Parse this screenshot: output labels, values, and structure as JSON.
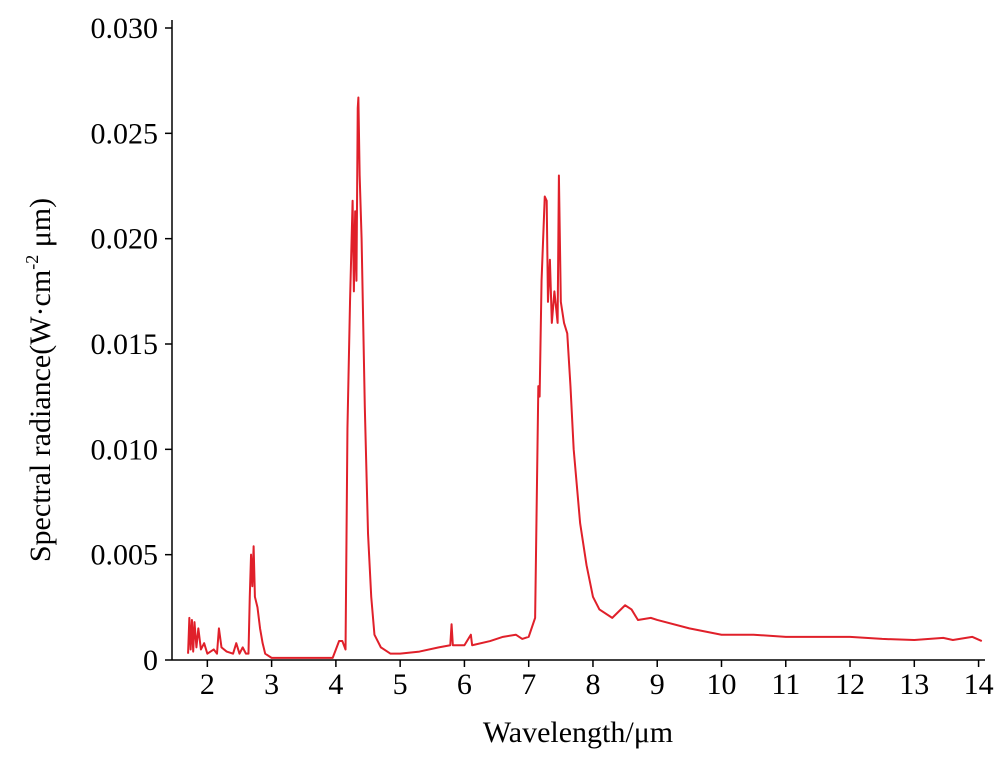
{
  "chart_data": {
    "type": "line",
    "xlabel": "Wavelength/μm",
    "ylabel": [
      "Spectral radiance(W·cm",
      "-2",
      " μm)"
    ],
    "x": [
      1.7,
      1.72,
      1.74,
      1.76,
      1.78,
      1.8,
      1.83,
      1.86,
      1.9,
      1.95,
      2.0,
      2.05,
      2.1,
      2.15,
      2.18,
      2.22,
      2.3,
      2.4,
      2.45,
      2.5,
      2.55,
      2.6,
      2.64,
      2.66,
      2.68,
      2.7,
      2.72,
      2.74,
      2.78,
      2.82,
      2.86,
      2.9,
      3.0,
      3.5,
      3.95,
      4.0,
      4.05,
      4.1,
      4.15,
      4.18,
      4.22,
      4.26,
      4.28,
      4.3,
      4.32,
      4.34,
      4.35,
      4.37,
      4.4,
      4.45,
      4.5,
      4.55,
      4.6,
      4.7,
      4.85,
      5.0,
      5.3,
      5.6,
      5.78,
      5.8,
      5.82,
      6.0,
      6.1,
      6.12,
      6.4,
      6.6,
      6.8,
      6.9,
      7.0,
      7.1,
      7.15,
      7.17,
      7.2,
      7.25,
      7.28,
      7.3,
      7.33,
      7.36,
      7.4,
      7.45,
      7.47,
      7.5,
      7.55,
      7.6,
      7.65,
      7.7,
      7.8,
      7.9,
      8.0,
      8.1,
      8.3,
      8.5,
      8.6,
      8.7,
      8.9,
      9.0,
      9.5,
      10.0,
      10.5,
      11,
      12,
      12.5,
      13,
      13.45,
      13.6,
      13.9,
      14.05
    ],
    "series": [
      {
        "name": "radiance",
        "color": "#e0202a",
        "values": [
          0.0003,
          0.002,
          0.0005,
          0.0019,
          0.0004,
          0.0018,
          0.0006,
          0.0015,
          0.0005,
          0.0008,
          0.0003,
          0.0004,
          0.0005,
          0.0003,
          0.0015,
          0.0006,
          0.0004,
          0.0003,
          0.0008,
          0.0003,
          0.0006,
          0.0003,
          0.0003,
          0.003,
          0.005,
          0.0035,
          0.0054,
          0.003,
          0.0025,
          0.0015,
          0.0008,
          0.0003,
          0.0001,
          0.0001,
          0.0001,
          0.0005,
          0.0009,
          0.0009,
          0.0005,
          0.011,
          0.017,
          0.0218,
          0.0175,
          0.0213,
          0.018,
          0.0262,
          0.0267,
          0.023,
          0.02,
          0.012,
          0.006,
          0.003,
          0.0012,
          0.0006,
          0.0003,
          0.0003,
          0.0004,
          0.0006,
          0.0007,
          0.0017,
          0.0007,
          0.0007,
          0.0012,
          0.0007,
          0.0009,
          0.0011,
          0.0012,
          0.001,
          0.0011,
          0.002,
          0.013,
          0.0125,
          0.018,
          0.022,
          0.0218,
          0.017,
          0.019,
          0.016,
          0.0175,
          0.016,
          0.023,
          0.017,
          0.016,
          0.0155,
          0.013,
          0.01,
          0.0065,
          0.0045,
          0.003,
          0.0024,
          0.002,
          0.0026,
          0.0024,
          0.0019,
          0.002,
          0.0019,
          0.0015,
          0.0012,
          0.0012,
          0.0011,
          0.0011,
          0.001,
          0.00095,
          0.00105,
          0.00095,
          0.0011,
          0.0009
        ]
      }
    ],
    "xlim": [
      1.45,
      14.1
    ],
    "xticks": [
      2,
      3,
      4,
      5,
      6,
      7,
      8,
      9,
      10,
      11,
      12,
      13,
      14
    ],
    "ylim": [
      0,
      0.03
    ],
    "yticks": [
      0,
      0.005,
      {
        "value": 0.01,
        "label": "0.010"
      },
      0.015,
      {
        "value": 0.02,
        "label": "0.020"
      },
      0.025,
      {
        "value": 0.03,
        "label": "0.030"
      }
    ],
    "grid": false
  }
}
